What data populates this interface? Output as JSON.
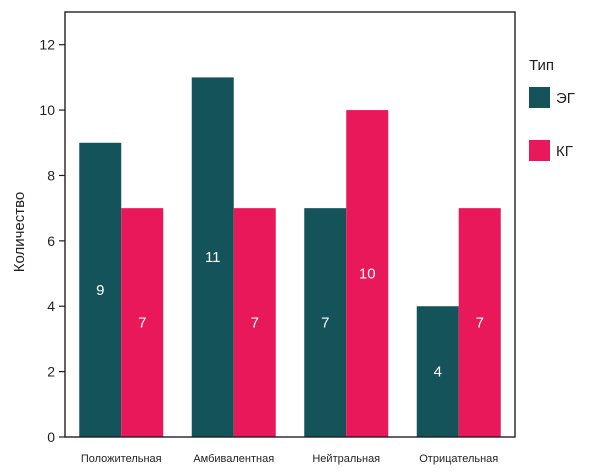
{
  "chart_data": {
    "type": "bar",
    "categories": [
      "Положительная",
      "Амбивалентная",
      "Нейтральная",
      "Отрицательная"
    ],
    "series": [
      {
        "name": "ЭГ",
        "color": "#14535a",
        "values": [
          9,
          11,
          7,
          4
        ]
      },
      {
        "name": "КГ",
        "color": "#e8185a",
        "values": [
          7,
          7,
          10,
          7
        ]
      }
    ],
    "ylabel": "Количество",
    "xlabel": "",
    "ylim": [
      0,
      13
    ],
    "yticks": [
      0,
      2,
      4,
      6,
      8,
      10,
      12
    ],
    "legend": {
      "title": "Тип",
      "position": "right"
    },
    "grid": false,
    "data_labels": true
  }
}
